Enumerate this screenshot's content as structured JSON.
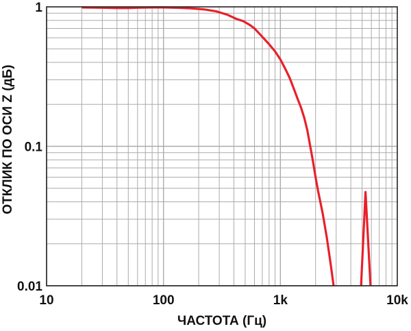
{
  "chart_data": {
    "type": "line",
    "title": "",
    "xlabel": "ЧАСТОТА (Гц)",
    "ylabel": "ОТКЛИК ПО ОСИ Z (дБ)",
    "x_scale": "log",
    "y_scale": "log",
    "xlim": [
      10,
      10000
    ],
    "ylim": [
      0.01,
      1
    ],
    "grid": true,
    "legend": "none",
    "x_ticks": [
      {
        "value": 10,
        "label": "10"
      },
      {
        "value": 100,
        "label": "100"
      },
      {
        "value": 1000,
        "label": "1k"
      },
      {
        "value": 10000,
        "label": "10k"
      }
    ],
    "y_ticks": [
      {
        "value": 1,
        "label": "1"
      },
      {
        "value": 0.1,
        "label": "0.1"
      },
      {
        "value": 0.01,
        "label": "0.01"
      }
    ],
    "colors": {
      "series": "#e8202a",
      "grid": "#aaaaaa",
      "frame": "#222222"
    },
    "series": [
      {
        "segments": [
          [
            [
              20,
              0.99
            ],
            [
              30,
              0.985
            ],
            [
              40,
              0.98
            ],
            [
              50,
              0.98
            ],
            [
              60,
              0.985
            ],
            [
              80,
              0.99
            ],
            [
              100,
              0.99
            ],
            [
              130,
              0.985
            ],
            [
              170,
              0.975
            ],
            [
              220,
              0.96
            ],
            [
              280,
              0.93
            ],
            [
              350,
              0.88
            ],
            [
              420,
              0.82
            ],
            [
              480,
              0.79
            ],
            [
              550,
              0.74
            ],
            [
              600,
              0.7
            ],
            [
              700,
              0.61
            ],
            [
              800,
              0.54
            ],
            [
              900,
              0.48
            ],
            [
              1000,
              0.42
            ],
            [
              1100,
              0.36
            ],
            [
              1200,
              0.31
            ],
            [
              1300,
              0.26
            ],
            [
              1400,
              0.22
            ],
            [
              1500,
              0.19
            ],
            [
              1600,
              0.16
            ],
            [
              1700,
              0.13
            ],
            [
              1800,
              0.1
            ],
            [
              1900,
              0.078
            ],
            [
              2000,
              0.06
            ],
            [
              2100,
              0.048
            ],
            [
              2300,
              0.033
            ],
            [
              2500,
              0.022
            ],
            [
              2700,
              0.014
            ],
            [
              2850,
              0.01
            ]
          ],
          [
            [
              4900,
              0.01
            ],
            [
              5350,
              0.047
            ],
            [
              5900,
              0.01
            ]
          ]
        ]
      }
    ]
  }
}
